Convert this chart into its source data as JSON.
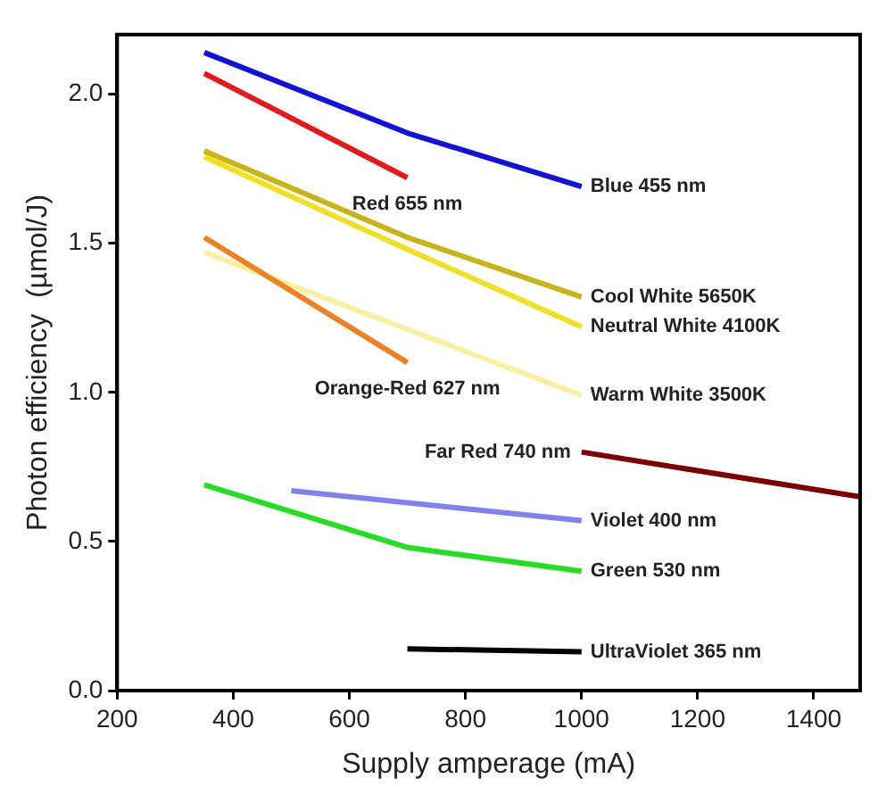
{
  "chart_data": {
    "type": "line",
    "xlabel": "Supply amperage (mA)",
    "ylabel": "Photon efficiency  (µmol/J)",
    "xlim": [
      200,
      1480
    ],
    "xticks": [
      200,
      400,
      600,
      800,
      1000,
      1200,
      1400
    ],
    "ylim": [
      0,
      2.2
    ],
    "yticks": [
      {
        "value": 0,
        "label": "0.0"
      },
      {
        "value": 0.5,
        "label": "0.5"
      },
      {
        "value": 1,
        "label": "1.0"
      },
      {
        "value": 1.5,
        "label": "1.5"
      },
      {
        "value": 2,
        "label": "2.0"
      }
    ],
    "grid": false,
    "legend": false,
    "marker": "none",
    "line_style": "solid",
    "series": [
      {
        "name": "Blue 455 nm",
        "color": "#1010e0",
        "x": [
          350,
          700,
          1000
        ],
        "values": [
          2.14,
          1.87,
          1.69
        ]
      },
      {
        "name": "Red 655 nm",
        "color": "#e81818",
        "x": [
          350,
          700
        ],
        "values": [
          2.07,
          1.72
        ]
      },
      {
        "name": "Cool White 5650K",
        "color": "#c8b414",
        "x": [
          350,
          700,
          1000
        ],
        "values": [
          1.81,
          1.52,
          1.32
        ]
      },
      {
        "name": "Neutral White 4100K",
        "color": "#f0e020",
        "x": [
          350,
          700,
          1000
        ],
        "values": [
          1.79,
          1.48,
          1.22
        ]
      },
      {
        "name": "Orange-Red 627 nm",
        "color": "#f08020",
        "x": [
          350,
          700
        ],
        "values": [
          1.52,
          1.1
        ]
      },
      {
        "name": "Warm White 3500K",
        "color": "#f8f0a0",
        "x": [
          350,
          1000
        ],
        "values": [
          1.47,
          0.99
        ]
      },
      {
        "name": "Far Red 740 nm",
        "color": "#800000",
        "x": [
          1000,
          1480
        ],
        "values": [
          0.8,
          0.65
        ]
      },
      {
        "name": "Violet 400 nm",
        "color": "#8080f0",
        "x": [
          500,
          1000
        ],
        "values": [
          0.67,
          0.57
        ]
      },
      {
        "name": "Green 530 nm",
        "color": "#20e020",
        "x": [
          350,
          700,
          1000
        ],
        "values": [
          0.69,
          0.48,
          0.4
        ]
      },
      {
        "name": "UltraViolet 365 nm",
        "color": "#000000",
        "x": [
          700,
          1000
        ],
        "values": [
          0.14,
          0.13
        ]
      }
    ]
  }
}
